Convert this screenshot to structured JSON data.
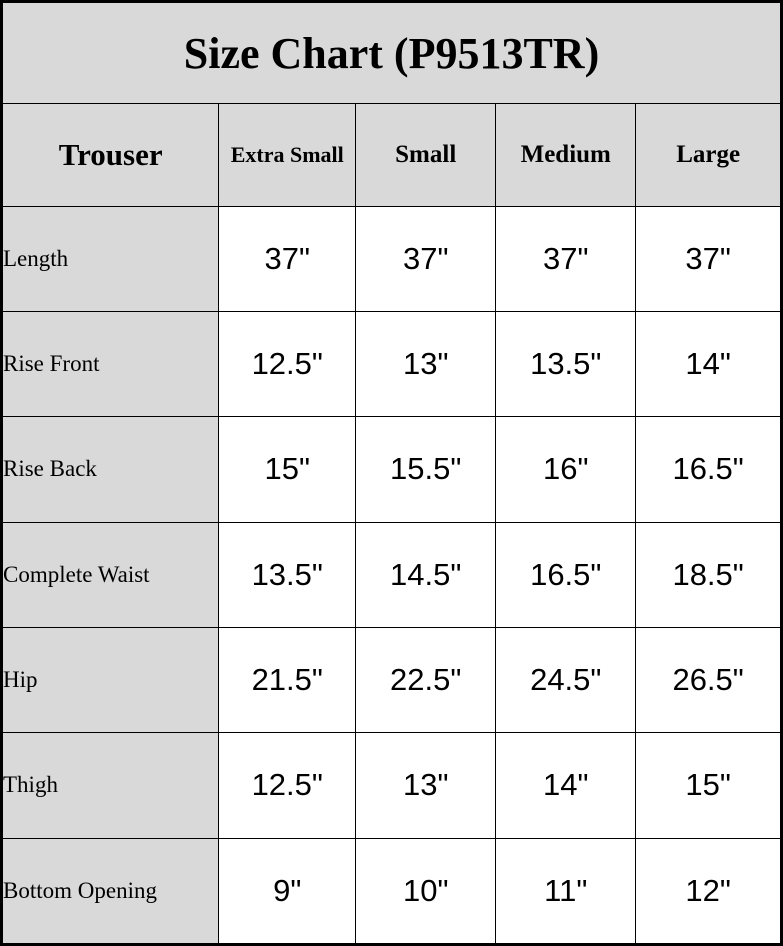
{
  "chart_data": {
    "type": "table",
    "title": "Size Chart (P9513TR)",
    "columns": [
      "Trouser",
      "Extra Small",
      "Small",
      "Medium",
      "Large"
    ],
    "rows": [
      {
        "label": "Length",
        "values": [
          "37\"",
          "37\"",
          "37\"",
          "37\""
        ]
      },
      {
        "label": "Rise Front",
        "values": [
          "12.5\"",
          "13\"",
          "13.5\"",
          "14\""
        ]
      },
      {
        "label": "Rise Back",
        "values": [
          "15\"",
          "15.5\"",
          "16\"",
          "16.5\""
        ]
      },
      {
        "label": "Complete Waist",
        "values": [
          "13.5\"",
          "14.5\"",
          "16.5\"",
          "18.5\""
        ]
      },
      {
        "label": "Hip",
        "values": [
          "21.5\"",
          "22.5\"",
          "24.5\"",
          "26.5\""
        ]
      },
      {
        "label": "Thigh",
        "values": [
          "12.5\"",
          "13\"",
          "14\"",
          "15\""
        ]
      },
      {
        "label": "Bottom Opening",
        "values": [
          "9\"",
          "10\"",
          "11\"",
          "12\""
        ]
      }
    ],
    "layout": {
      "header_background": "#d9d9d9",
      "cell_background": "#ffffff",
      "border_color": "#000000",
      "text_color": "#000000"
    }
  }
}
